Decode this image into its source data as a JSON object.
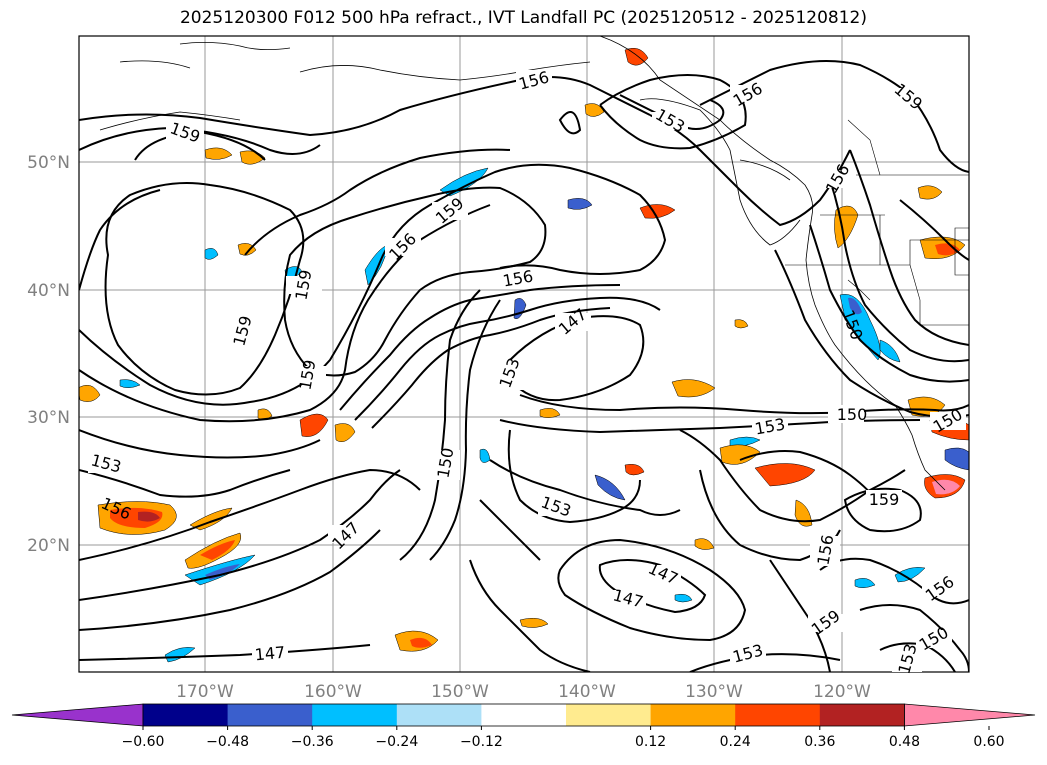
{
  "title": "2025120300 F012 500 hPa refract., IVT Landfall PC (2025120512 - 2025120812)",
  "lat_labels": [
    "50°N",
    "40°N",
    "30°N",
    "20°N"
  ],
  "lon_labels": [
    "170°W",
    "160°W",
    "150°W",
    "140°W",
    "130°W",
    "120°W"
  ],
  "contour_labels": [
    "159",
    "156",
    "153",
    "156",
    "159",
    "156",
    "159",
    "159",
    "159",
    "156",
    "153",
    "147",
    "150",
    "153",
    "150",
    "153",
    "153",
    "150",
    "147",
    "147",
    "147",
    "156",
    "159",
    "159",
    "156",
    "150",
    "153",
    "147",
    "153",
    "156",
    "150"
  ],
  "colorbar": {
    "ticks": [
      "−0.60",
      "−0.48",
      "−0.36",
      "−0.24",
      "−0.12",
      "0.12",
      "0.24",
      "0.36",
      "0.48",
      "0.60"
    ],
    "colors": [
      "#9932CC",
      "#00008B",
      "#3A5FCD",
      "#00BFFF",
      "#ADE0F7",
      "#FFFFFF",
      "#FFEB8F",
      "#FFA500",
      "#FF4500",
      "#B22222",
      "#FF88AA"
    ]
  }
}
